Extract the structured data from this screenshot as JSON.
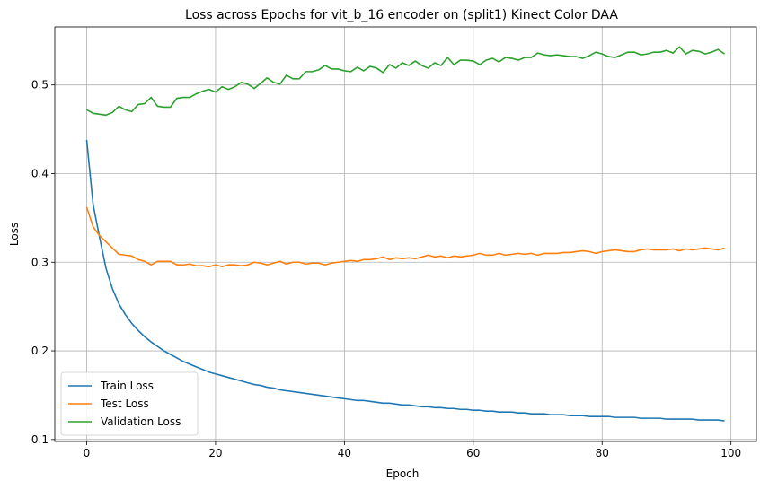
{
  "chart_data": {
    "type": "line",
    "title": "Loss across Epochs for vit_b_16 encoder on (split1) Kinect Color DAA",
    "xlabel": "Epoch",
    "ylabel": "Loss",
    "xlim": [
      -4.95,
      103.95
    ],
    "ylim": [
      0.0978,
      0.5655
    ],
    "xticks": [
      0,
      20,
      40,
      60,
      80,
      100
    ],
    "yticks": [
      0.1,
      0.2,
      0.3,
      0.4,
      0.5
    ],
    "xtick_labels": [
      "0",
      "20",
      "40",
      "60",
      "80",
      "100"
    ],
    "ytick_labels": [
      "0.1",
      "0.2",
      "0.3",
      "0.4",
      "0.5"
    ],
    "grid": true,
    "legend_position": "lower-left",
    "colors": {
      "train": "#1f77b4",
      "test": "#ff7f0e",
      "validation": "#2ca02c"
    },
    "series": [
      {
        "name": "Train Loss",
        "color": "#1f77b4",
        "x_start": 0,
        "values": [
          0.438,
          0.365,
          0.328,
          0.293,
          0.27,
          0.253,
          0.241,
          0.231,
          0.223,
          0.216,
          0.21,
          0.205,
          0.2,
          0.196,
          0.192,
          0.188,
          0.185,
          0.182,
          0.179,
          0.176,
          0.174,
          0.172,
          0.17,
          0.168,
          0.166,
          0.164,
          0.162,
          0.161,
          0.159,
          0.158,
          0.156,
          0.155,
          0.154,
          0.153,
          0.152,
          0.151,
          0.15,
          0.149,
          0.148,
          0.147,
          0.146,
          0.145,
          0.144,
          0.144,
          0.143,
          0.142,
          0.141,
          0.141,
          0.14,
          0.139,
          0.139,
          0.138,
          0.137,
          0.137,
          0.136,
          0.136,
          0.135,
          0.135,
          0.134,
          0.134,
          0.133,
          0.133,
          0.132,
          0.132,
          0.131,
          0.131,
          0.131,
          0.13,
          0.13,
          0.129,
          0.129,
          0.129,
          0.128,
          0.128,
          0.128,
          0.127,
          0.127,
          0.127,
          0.126,
          0.126,
          0.126,
          0.126,
          0.125,
          0.125,
          0.125,
          0.125,
          0.124,
          0.124,
          0.124,
          0.124,
          0.123,
          0.123,
          0.123,
          0.123,
          0.123,
          0.122,
          0.122,
          0.122,
          0.122,
          0.121
        ]
      },
      {
        "name": "Test Loss",
        "color": "#ff7f0e",
        "x_start": 0,
        "values": [
          0.362,
          0.34,
          0.33,
          0.323,
          0.316,
          0.309,
          0.308,
          0.307,
          0.303,
          0.301,
          0.297,
          0.301,
          0.301,
          0.301,
          0.297,
          0.297,
          0.298,
          0.296,
          0.296,
          0.295,
          0.297,
          0.295,
          0.297,
          0.297,
          0.296,
          0.297,
          0.3,
          0.299,
          0.297,
          0.299,
          0.301,
          0.298,
          0.3,
          0.3,
          0.298,
          0.299,
          0.299,
          0.297,
          0.299,
          0.3,
          0.301,
          0.302,
          0.301,
          0.303,
          0.303,
          0.304,
          0.306,
          0.303,
          0.305,
          0.304,
          0.305,
          0.304,
          0.306,
          0.308,
          0.306,
          0.307,
          0.305,
          0.307,
          0.306,
          0.307,
          0.308,
          0.31,
          0.308,
          0.308,
          0.31,
          0.308,
          0.309,
          0.31,
          0.309,
          0.31,
          0.308,
          0.31,
          0.31,
          0.31,
          0.311,
          0.311,
          0.312,
          0.313,
          0.312,
          0.31,
          0.312,
          0.313,
          0.314,
          0.313,
          0.312,
          0.312,
          0.314,
          0.315,
          0.314,
          0.314,
          0.314,
          0.315,
          0.313,
          0.315,
          0.314,
          0.315,
          0.316,
          0.315,
          0.314,
          0.316
        ]
      },
      {
        "name": "Validation Loss",
        "color": "#2ca02c",
        "x_start": 0,
        "values": [
          0.472,
          0.468,
          0.467,
          0.466,
          0.469,
          0.476,
          0.472,
          0.47,
          0.478,
          0.479,
          0.486,
          0.476,
          0.475,
          0.475,
          0.485,
          0.486,
          0.486,
          0.49,
          0.493,
          0.495,
          0.492,
          0.498,
          0.495,
          0.498,
          0.503,
          0.501,
          0.496,
          0.502,
          0.508,
          0.503,
          0.501,
          0.511,
          0.507,
          0.507,
          0.515,
          0.515,
          0.517,
          0.522,
          0.518,
          0.518,
          0.516,
          0.515,
          0.52,
          0.516,
          0.521,
          0.519,
          0.514,
          0.523,
          0.519,
          0.525,
          0.522,
          0.527,
          0.522,
          0.519,
          0.525,
          0.522,
          0.531,
          0.523,
          0.528,
          0.528,
          0.527,
          0.523,
          0.528,
          0.53,
          0.526,
          0.531,
          0.53,
          0.528,
          0.531,
          0.531,
          0.536,
          0.534,
          0.533,
          0.534,
          0.533,
          0.532,
          0.532,
          0.53,
          0.533,
          0.537,
          0.535,
          0.532,
          0.531,
          0.534,
          0.537,
          0.537,
          0.534,
          0.535,
          0.537,
          0.537,
          0.539,
          0.536,
          0.543,
          0.535,
          0.539,
          0.538,
          0.535,
          0.537,
          0.54,
          0.535
        ]
      }
    ]
  }
}
